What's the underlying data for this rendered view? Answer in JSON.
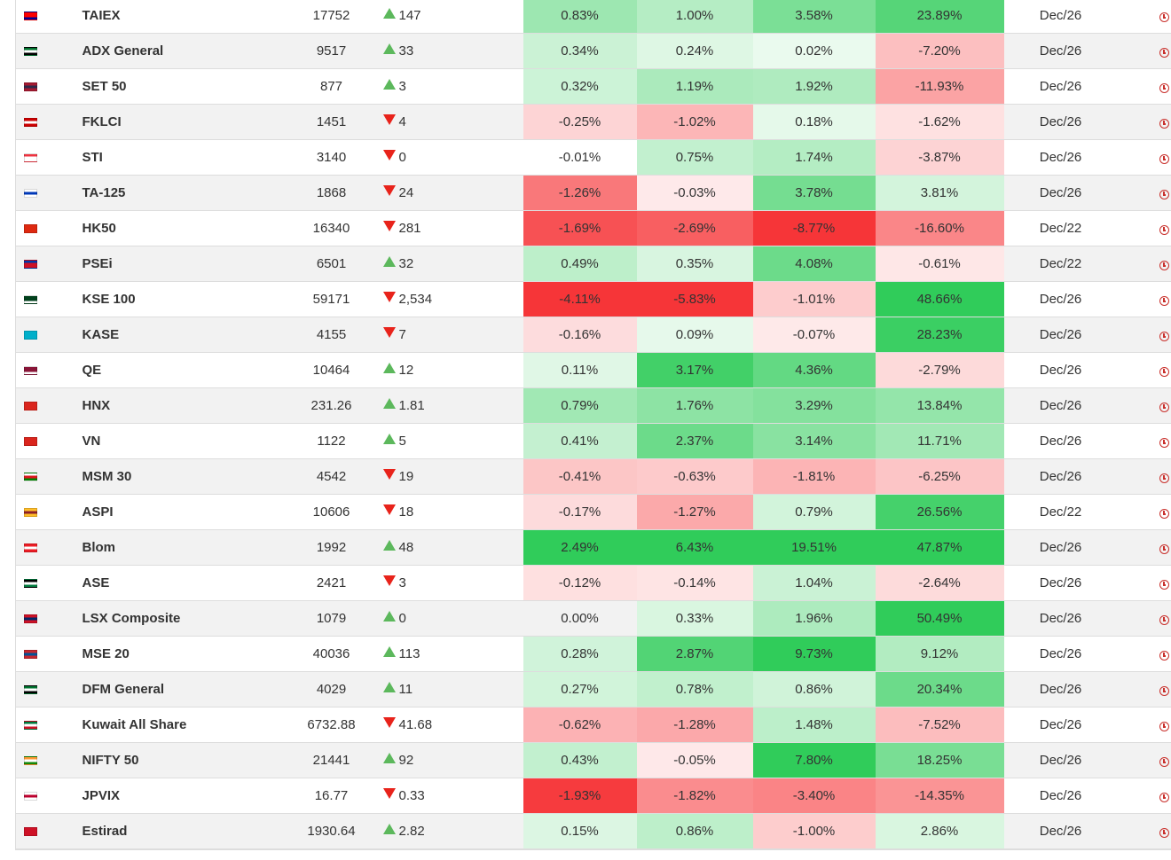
{
  "colors": {
    "up": "#5cb85c",
    "down": "#e8231b",
    "alarm": "#c9302c",
    "green": [
      48,
      204,
      90
    ],
    "red": [
      246,
      53,
      56
    ]
  },
  "rows": [
    {
      "country": "Taiwan",
      "flag": [
        "#fe0000",
        "#fe0000",
        "#000095"
      ],
      "name": "TAIEX",
      "price": "17752",
      "dir": "up",
      "change": "147",
      "day": "0.83%",
      "week": "1.00%",
      "month": "3.58%",
      "ytd": "23.89%",
      "date": "Dec/26"
    },
    {
      "country": "UAE",
      "flag": [
        "#00732f",
        "#ffffff",
        "#000000"
      ],
      "name": "ADX General",
      "price": "9517",
      "dir": "up",
      "change": "33",
      "day": "0.34%",
      "week": "0.24%",
      "month": "0.02%",
      "ytd": "-7.20%",
      "date": "Dec/26"
    },
    {
      "country": "Thailand",
      "flag": [
        "#a51931",
        "#2d2a4a",
        "#a51931"
      ],
      "name": "SET 50",
      "price": "877",
      "dir": "up",
      "change": "3",
      "day": "0.32%",
      "week": "1.19%",
      "month": "1.92%",
      "ytd": "-11.93%",
      "date": "Dec/26"
    },
    {
      "country": "Malaysia",
      "flag": [
        "#cc0001",
        "#ffffff",
        "#cc0001"
      ],
      "name": "FKLCI",
      "price": "1451",
      "dir": "down",
      "change": "4",
      "day": "-0.25%",
      "week": "-1.02%",
      "month": "0.18%",
      "ytd": "-1.62%",
      "date": "Dec/26"
    },
    {
      "country": "Singapore",
      "flag": [
        "#ef3340",
        "#ffffff",
        "#ffffff"
      ],
      "name": "STI",
      "price": "3140",
      "dir": "down",
      "change": "0",
      "day": "-0.01%",
      "week": "0.75%",
      "month": "1.74%",
      "ytd": "-3.87%",
      "date": "Dec/26"
    },
    {
      "country": "Israel",
      "flag": [
        "#ffffff",
        "#0038b8",
        "#ffffff"
      ],
      "name": "TA-125",
      "price": "1868",
      "dir": "down",
      "change": "24",
      "day": "-1.26%",
      "week": "-0.03%",
      "month": "3.78%",
      "ytd": "3.81%",
      "date": "Dec/26"
    },
    {
      "country": "Hong Kong",
      "flag": [
        "#de2910",
        "#de2910",
        "#de2910"
      ],
      "name": "HK50",
      "price": "16340",
      "dir": "down",
      "change": "281",
      "day": "-1.69%",
      "week": "-2.69%",
      "month": "-8.77%",
      "ytd": "-16.60%",
      "date": "Dec/22"
    },
    {
      "country": "Philippines",
      "flag": [
        "#0038a8",
        "#ce1126",
        "#ce1126"
      ],
      "name": "PSEi",
      "price": "6501",
      "dir": "up",
      "change": "32",
      "day": "0.49%",
      "week": "0.35%",
      "month": "4.08%",
      "ytd": "-0.61%",
      "date": "Dec/22"
    },
    {
      "country": "Pakistan",
      "flag": [
        "#01411c",
        "#01411c",
        "#ffffff"
      ],
      "name": "KSE 100",
      "price": "59171",
      "dir": "down",
      "change": "2,534",
      "day": "-4.11%",
      "week": "-5.83%",
      "month": "-1.01%",
      "ytd": "48.66%",
      "date": "Dec/26"
    },
    {
      "country": "Kazakhstan",
      "flag": [
        "#00afca",
        "#00afca",
        "#00afca"
      ],
      "name": "KASE",
      "price": "4155",
      "dir": "down",
      "change": "7",
      "day": "-0.16%",
      "week": "0.09%",
      "month": "-0.07%",
      "ytd": "28.23%",
      "date": "Dec/26"
    },
    {
      "country": "Qatar",
      "flag": [
        "#8a1538",
        "#8a1538",
        "#ffffff"
      ],
      "name": "QE",
      "price": "10464",
      "dir": "up",
      "change": "12",
      "day": "0.11%",
      "week": "3.17%",
      "month": "4.36%",
      "ytd": "-2.79%",
      "date": "Dec/26"
    },
    {
      "country": "Vietnam",
      "flag": [
        "#da251d",
        "#da251d",
        "#da251d"
      ],
      "name": "HNX",
      "price": "231.26",
      "dir": "up",
      "change": "1.81",
      "day": "0.79%",
      "week": "1.76%",
      "month": "3.29%",
      "ytd": "13.84%",
      "date": "Dec/26"
    },
    {
      "country": "Vietnam",
      "flag": [
        "#da251d",
        "#da251d",
        "#da251d"
      ],
      "name": "VN",
      "price": "1122",
      "dir": "up",
      "change": "5",
      "day": "0.41%",
      "week": "2.37%",
      "month": "3.14%",
      "ytd": "11.71%",
      "date": "Dec/26"
    },
    {
      "country": "Oman",
      "flag": [
        "#ffffff",
        "#db161b",
        "#008000"
      ],
      "name": "MSM 30",
      "price": "4542",
      "dir": "down",
      "change": "19",
      "day": "-0.41%",
      "week": "-0.63%",
      "month": "-1.81%",
      "ytd": "-6.25%",
      "date": "Dec/26"
    },
    {
      "country": "Sri Lanka",
      "flag": [
        "#ffbe29",
        "#8d2029",
        "#ffbe29"
      ],
      "name": "ASPI",
      "price": "10606",
      "dir": "down",
      "change": "18",
      "day": "-0.17%",
      "week": "-1.27%",
      "month": "0.79%",
      "ytd": "26.56%",
      "date": "Dec/22"
    },
    {
      "country": "Lebanon",
      "flag": [
        "#ed1c24",
        "#ffffff",
        "#ed1c24"
      ],
      "name": "Blom",
      "price": "1992",
      "dir": "up",
      "change": "48",
      "day": "2.49%",
      "week": "6.43%",
      "month": "19.51%",
      "ytd": "47.87%",
      "date": "Dec/26"
    },
    {
      "country": "Jordan",
      "flag": [
        "#000000",
        "#ffffff",
        "#007a3d"
      ],
      "name": "ASE",
      "price": "2421",
      "dir": "down",
      "change": "3",
      "day": "-0.12%",
      "week": "-0.14%",
      "month": "1.04%",
      "ytd": "-2.64%",
      "date": "Dec/26"
    },
    {
      "country": "Laos",
      "flag": [
        "#ce1126",
        "#002868",
        "#ce1126"
      ],
      "name": "LSX Composite",
      "price": "1079",
      "dir": "up",
      "change": "0",
      "day": "0.00%",
      "week": "0.33%",
      "month": "1.96%",
      "ytd": "50.49%",
      "date": "Dec/26"
    },
    {
      "country": "Mongolia",
      "flag": [
        "#c4272f",
        "#015197",
        "#c4272f"
      ],
      "name": "MSE 20",
      "price": "40036",
      "dir": "up",
      "change": "113",
      "day": "0.28%",
      "week": "2.87%",
      "month": "9.73%",
      "ytd": "9.12%",
      "date": "Dec/26"
    },
    {
      "country": "UAE",
      "flag": [
        "#00732f",
        "#ffffff",
        "#000000"
      ],
      "name": "DFM General",
      "price": "4029",
      "dir": "up",
      "change": "11",
      "day": "0.27%",
      "week": "0.78%",
      "month": "0.86%",
      "ytd": "20.34%",
      "date": "Dec/26"
    },
    {
      "country": "Kuwait",
      "flag": [
        "#007a3d",
        "#ffffff",
        "#ce1126"
      ],
      "name": "Kuwait All Share",
      "price": "6732.88",
      "dir": "down",
      "change": "41.68",
      "day": "-0.62%",
      "week": "-1.28%",
      "month": "1.48%",
      "ytd": "-7.52%",
      "date": "Dec/26"
    },
    {
      "country": "India",
      "flag": [
        "#ff9933",
        "#ffffff",
        "#138808"
      ],
      "name": "NIFTY 50",
      "price": "21441",
      "dir": "up",
      "change": "92",
      "day": "0.43%",
      "week": "-0.05%",
      "month": "7.80%",
      "ytd": "18.25%",
      "date": "Dec/26"
    },
    {
      "country": "Japan",
      "flag": [
        "#ffffff",
        "#bc002d",
        "#ffffff"
      ],
      "name": "JPVIX",
      "price": "16.77",
      "dir": "down",
      "change": "0.33",
      "day": "-1.93%",
      "week": "-1.82%",
      "month": "-3.40%",
      "ytd": "-14.35%",
      "date": "Dec/26"
    },
    {
      "country": "Bahrain",
      "flag": [
        "#ce1126",
        "#ce1126",
        "#ce1126"
      ],
      "name": "Estirad",
      "price": "1930.64",
      "dir": "up",
      "change": "2.82",
      "day": "0.15%",
      "week": "0.86%",
      "month": "-1.00%",
      "ytd": "2.86%",
      "date": "Dec/26"
    }
  ]
}
